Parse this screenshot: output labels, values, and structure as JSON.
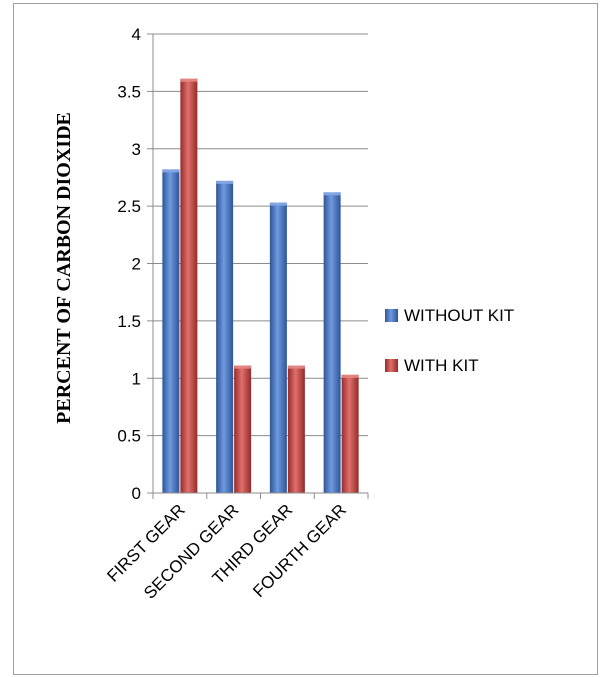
{
  "chart_data": {
    "type": "bar",
    "title": "",
    "xlabel": "",
    "ylabel": "PERCENT OF CARBON DIOXIDE",
    "categories": [
      "FIRST GEAR",
      "SECOND GEAR",
      "THIRD GEAR",
      "FOURTH GEAR"
    ],
    "series": [
      {
        "name": "WITHOUT KIT",
        "values": [
          2.82,
          2.72,
          2.53,
          2.62
        ],
        "color": "#4a78c8"
      },
      {
        "name": "WITH KIT",
        "values": [
          3.61,
          1.11,
          1.11,
          1.03
        ],
        "color": "#c84b48"
      }
    ],
    "ylim": [
      0,
      4
    ],
    "yticks": [
      "0",
      "0.5",
      "1",
      "1.5",
      "2",
      "2.5",
      "3",
      "3.5",
      "4"
    ],
    "grid": true,
    "legend_position": "right"
  }
}
